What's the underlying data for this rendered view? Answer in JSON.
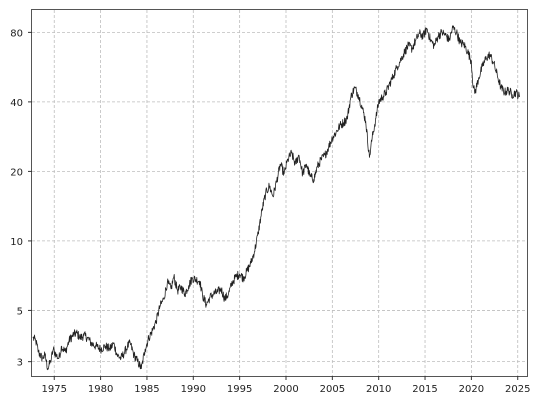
{
  "chart_data": {
    "type": "line",
    "title": "",
    "xlabel": "",
    "ylabel": "",
    "yscale": "log",
    "xlim": [
      1972.6,
      2026.0
    ],
    "ylim": [
      2.6,
      100
    ],
    "grid": true,
    "x_ticks": [
      1975,
      1980,
      1985,
      1990,
      1995,
      2000,
      2005,
      2010,
      2015,
      2020,
      2025
    ],
    "x_tick_labels": [
      "1975",
      "1980",
      "1985",
      "1990",
      "1995",
      "2000",
      "2005",
      "2010",
      "2015",
      "2020",
      "2025"
    ],
    "y_ticks": [
      3,
      5,
      10,
      20,
      40,
      80
    ],
    "y_tick_labels": [
      "3",
      "5",
      "10",
      "20",
      "40",
      "80"
    ],
    "line_color": "#222222",
    "grid_color": "#bdbdbd",
    "series": [
      {
        "x": [
          1972.7,
          1973.0,
          1973.3,
          1973.7,
          1974.0,
          1974.3,
          1974.6,
          1974.9,
          1975.2,
          1975.5,
          1975.8,
          1976.2,
          1976.6,
          1977.0,
          1977.4,
          1977.8,
          1978.2,
          1978.6,
          1979.0,
          1979.5,
          1980.0,
          1980.5,
          1981.0,
          1981.4,
          1981.8,
          1982.2,
          1982.6,
          1982.9,
          1983.2,
          1983.6,
          1984.0,
          1984.4,
          1984.8,
          1985.2,
          1985.6,
          1986.0,
          1986.4,
          1986.8,
          1987.2,
          1987.6,
          1987.9,
          1988.3,
          1988.7,
          1989.1,
          1989.5,
          1989.9,
          1990.3,
          1990.7,
          1991.0,
          1991.4,
          1991.8,
          1992.2,
          1992.6,
          1993.0,
          1993.4,
          1993.8,
          1994.2,
          1994.6,
          1995.0,
          1995.4,
          1995.8,
          1996.2,
          1996.6,
          1997.0,
          1997.4,
          1997.8,
          1998.2,
          1998.6,
          1999.0,
          1999.4,
          1999.8,
          2000.2,
          2000.6,
          2001.0,
          2001.4,
          2001.8,
          2002.2,
          2002.6,
          2003.0,
          2003.4,
          2003.8,
          2004.2,
          2004.6,
          2005.0,
          2005.4,
          2005.8,
          2006.2,
          2006.6,
          2007.0,
          2007.4,
          2007.8,
          2008.2,
          2008.6,
          2009.0,
          2009.3,
          2009.7,
          2010.0,
          2010.4,
          2010.8,
          2011.2,
          2011.6,
          2012.0,
          2012.4,
          2012.8,
          2013.2,
          2013.6,
          2014.0,
          2014.4,
          2014.8,
          2015.2,
          2015.6,
          2016.0,
          2016.4,
          2016.8,
          2017.2,
          2017.6,
          2018.0,
          2018.4,
          2018.8,
          2019.2,
          2019.6,
          2020.0,
          2020.2,
          2020.4,
          2020.8,
          2021.2,
          2021.6,
          2022.0,
          2022.4,
          2022.8,
          2023.2,
          2023.6,
          2024.0,
          2024.4,
          2024.8,
          2025.2
        ],
        "y": [
          3.8,
          3.7,
          3.3,
          3.1,
          3.2,
          2.8,
          3.0,
          3.4,
          3.2,
          3.1,
          3.5,
          3.3,
          3.7,
          3.9,
          4.0,
          3.8,
          3.9,
          3.8,
          3.6,
          3.5,
          3.4,
          3.5,
          3.4,
          3.6,
          3.2,
          3.1,
          3.3,
          3.5,
          3.6,
          3.2,
          3.0,
          2.8,
          3.4,
          3.8,
          4.1,
          4.5,
          5.2,
          5.6,
          6.6,
          6.2,
          7.0,
          6.1,
          6.3,
          5.9,
          6.4,
          6.9,
          6.8,
          6.7,
          5.8,
          5.3,
          5.7,
          5.9,
          6.0,
          6.2,
          5.6,
          5.9,
          6.6,
          7.0,
          7.2,
          6.9,
          7.4,
          8.0,
          9.0,
          10.8,
          13.5,
          16.0,
          17.3,
          15.6,
          18.2,
          21.5,
          19.5,
          22.5,
          24.0,
          21.5,
          23.5,
          19.5,
          21.5,
          19.0,
          18.5,
          21.0,
          22.5,
          23.5,
          25.5,
          28.0,
          29.5,
          31.5,
          32.5,
          34.0,
          42.0,
          46.0,
          43.0,
          38.0,
          33.0,
          23.0,
          28.0,
          34.0,
          40.0,
          42.0,
          44.0,
          48.0,
          52.0,
          57.0,
          61.0,
          66.0,
          70.0,
          68.0,
          74.0,
          79.0,
          77.0,
          83.0,
          74.0,
          70.0,
          77.0,
          80.0,
          78.0,
          74.0,
          84.0,
          80.0,
          72.0,
          71.0,
          66.0,
          60.0,
          46.0,
          44.0,
          51.0,
          57.0,
          62.0,
          64.0,
          59.0,
          52.0,
          46.0,
          44.0,
          45.0,
          43.0,
          44.0,
          42.0
        ]
      }
    ]
  }
}
